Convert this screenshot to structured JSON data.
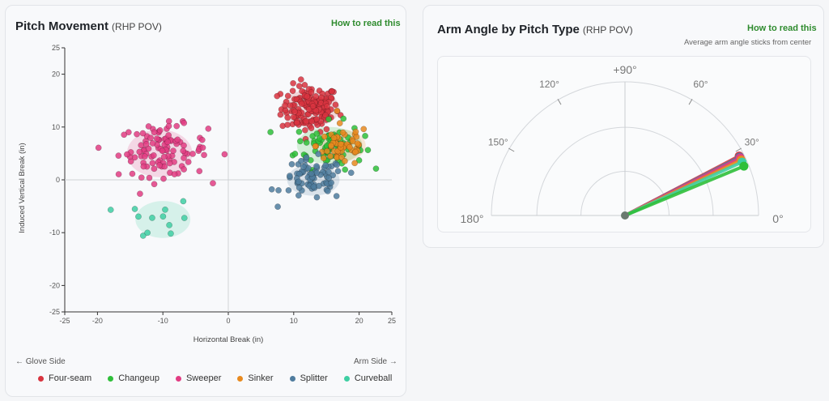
{
  "movement": {
    "title": "Pitch Movement",
    "subtitle": "(RHP POV)",
    "how_to": "How to read this",
    "glove_side": "← Glove Side",
    "arm_side": "Arm Side →"
  },
  "arm_angle": {
    "title": "Arm Angle by Pitch Type",
    "subtitle": "(RHP POV)",
    "how_to": "How to read this",
    "note": "Average arm angle sticks from center"
  },
  "colors": {
    "Four-seam": "#d8343f",
    "Changeup": "#2fbf3a",
    "Sweeper": "#e23d83",
    "Sinker": "#e88a1f",
    "Splitter": "#4f7c9e",
    "Curveball": "#3fcfa3"
  },
  "chart_data": [
    {
      "type": "scatter",
      "xlabel": "Horizontal Break (in)",
      "ylabel": "Induced Vertical Break (in)",
      "xlim": [
        -25,
        25
      ],
      "ylim": [
        -25,
        25
      ],
      "xticks": [
        -25,
        -20,
        -10,
        0,
        10,
        20,
        25
      ],
      "yticks": [
        -25,
        -20,
        -10,
        0,
        10,
        20,
        25
      ],
      "legend_position": "bottom",
      "series": [
        {
          "name": "Four-seam",
          "count": 150,
          "center": [
            12.5,
            13.5
          ],
          "spread": [
            2.2,
            2.2
          ],
          "ellipse": [
            12.5,
            13.5,
            4.5,
            3.5
          ]
        },
        {
          "name": "Changeup",
          "count": 70,
          "center": [
            15.5,
            6.5
          ],
          "spread": [
            2.6,
            2.2
          ],
          "ellipse": [
            15.5,
            6.5,
            5,
            3.5
          ]
        },
        {
          "name": "Sweeper",
          "count": 110,
          "center": [
            -10,
            5.5
          ],
          "spread": [
            3.4,
            2.4
          ],
          "ellipse": [
            -10.5,
            5,
            5,
            4.5
          ]
        },
        {
          "name": "Sinker",
          "count": 55,
          "center": [
            17.5,
            6.5
          ],
          "spread": [
            2,
            2
          ],
          "ellipse": [
            17.5,
            6.5,
            3.5,
            3
          ]
        },
        {
          "name": "Splitter",
          "count": 75,
          "center": [
            13,
            0
          ],
          "spread": [
            2.4,
            2
          ],
          "ellipse": [
            13,
            0,
            4,
            3
          ]
        },
        {
          "name": "Curveball",
          "count": 12,
          "center": [
            -10,
            -7.5
          ],
          "spread": [
            2.8,
            1.8
          ],
          "ellipse": [
            -10,
            -7.5,
            4.2,
            3.5
          ]
        }
      ]
    },
    {
      "type": "polar",
      "angle_ticks": [
        0,
        30,
        60,
        90,
        120,
        150,
        180
      ],
      "angle_labels": [
        "0°",
        "30°",
        "60°",
        "+90°",
        "120°",
        "150°",
        "180°"
      ],
      "series": [
        {
          "name": "Four-seam",
          "angle_deg": 27.5
        },
        {
          "name": "Splitter",
          "angle_deg": 27.0
        },
        {
          "name": "Sweeper",
          "angle_deg": 26.5
        },
        {
          "name": "Sinker",
          "angle_deg": 25.5
        },
        {
          "name": "Curveball",
          "angle_deg": 24.5
        },
        {
          "name": "Changeup",
          "angle_deg": 22.5
        }
      ]
    }
  ]
}
